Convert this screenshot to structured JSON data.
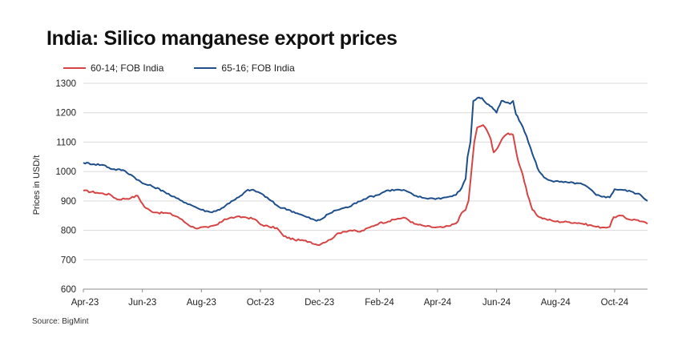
{
  "page": {
    "title": "India: Silico manganese export prices",
    "source": "Source: BigMint"
  },
  "chart_data": {
    "type": "line",
    "title": "India: Silico manganese export prices",
    "xlabel": "",
    "ylabel": "Prices in USD/t",
    "ylim": [
      600,
      1300
    ],
    "yticks": [
      600,
      700,
      800,
      900,
      1000,
      1100,
      1200,
      1300
    ],
    "xticks": [
      "Apr-23",
      "Jun-23",
      "Aug-23",
      "Oct-23",
      "Dec-23",
      "Feb-24",
      "Apr-24",
      "Jun-24",
      "Aug-24",
      "Oct-24"
    ],
    "x_range": [
      "2023-04-01",
      "2024-11-04"
    ],
    "grid": "horizontal",
    "legend_position": "top-left",
    "series": [
      {
        "name": "60-14; FOB India",
        "color": "#d64545",
        "points": [
          [
            "2023-04-01",
            935
          ],
          [
            "2023-04-15",
            928
          ],
          [
            "2023-04-29",
            921
          ],
          [
            "2023-05-06",
            905
          ],
          [
            "2023-05-20",
            910
          ],
          [
            "2023-05-27",
            918
          ],
          [
            "2023-06-03",
            880
          ],
          [
            "2023-06-10",
            865
          ],
          [
            "2023-06-17",
            860
          ],
          [
            "2023-06-28",
            858
          ],
          [
            "2023-07-08",
            845
          ],
          [
            "2023-07-18",
            820
          ],
          [
            "2023-07-25",
            808
          ],
          [
            "2023-08-08",
            810
          ],
          [
            "2023-08-18",
            820
          ],
          [
            "2023-08-25",
            838
          ],
          [
            "2023-09-05",
            845
          ],
          [
            "2023-09-15",
            845
          ],
          [
            "2023-09-25",
            838
          ],
          [
            "2023-10-01",
            820
          ],
          [
            "2023-10-10",
            812
          ],
          [
            "2023-10-18",
            808
          ],
          [
            "2023-10-25",
            780
          ],
          [
            "2023-11-05",
            768
          ],
          [
            "2023-11-15",
            765
          ],
          [
            "2023-11-22",
            760
          ],
          [
            "2023-11-29",
            750
          ],
          [
            "2023-12-05",
            758
          ],
          [
            "2023-12-12",
            768
          ],
          [
            "2023-12-18",
            785
          ],
          [
            "2023-12-25",
            795
          ],
          [
            "2024-01-02",
            800
          ],
          [
            "2024-01-12",
            795
          ],
          [
            "2024-01-22",
            810
          ],
          [
            "2024-02-01",
            825
          ],
          [
            "2024-02-10",
            830
          ],
          [
            "2024-02-20",
            840
          ],
          [
            "2024-02-28",
            842
          ],
          [
            "2024-03-08",
            822
          ],
          [
            "2024-03-18",
            815
          ],
          [
            "2024-03-28",
            810
          ],
          [
            "2024-04-06",
            810
          ],
          [
            "2024-04-14",
            815
          ],
          [
            "2024-04-22",
            830
          ],
          [
            "2024-04-26",
            860
          ],
          [
            "2024-04-30",
            870
          ],
          [
            "2024-05-03",
            900
          ],
          [
            "2024-05-06",
            1000
          ],
          [
            "2024-05-09",
            1100
          ],
          [
            "2024-05-12",
            1150
          ],
          [
            "2024-05-18",
            1158
          ],
          [
            "2024-05-22",
            1140
          ],
          [
            "2024-05-26",
            1110
          ],
          [
            "2024-05-29",
            1065
          ],
          [
            "2024-06-02",
            1080
          ],
          [
            "2024-06-05",
            1100
          ],
          [
            "2024-06-09",
            1120
          ],
          [
            "2024-06-13",
            1130
          ],
          [
            "2024-06-18",
            1125
          ],
          [
            "2024-06-20",
            1090
          ],
          [
            "2024-06-23",
            1040
          ],
          [
            "2024-06-28",
            990
          ],
          [
            "2024-07-03",
            920
          ],
          [
            "2024-07-08",
            870
          ],
          [
            "2024-07-15",
            845
          ],
          [
            "2024-07-22",
            838
          ],
          [
            "2024-08-01",
            830
          ],
          [
            "2024-08-15",
            828
          ],
          [
            "2024-08-25",
            825
          ],
          [
            "2024-09-05",
            818
          ],
          [
            "2024-09-12",
            812
          ],
          [
            "2024-09-20",
            810
          ],
          [
            "2024-09-26",
            812
          ],
          [
            "2024-09-30",
            845
          ],
          [
            "2024-10-08",
            850
          ],
          [
            "2024-10-15",
            838
          ],
          [
            "2024-10-25",
            835
          ],
          [
            "2024-11-04",
            822
          ]
        ]
      },
      {
        "name": "65-16; FOB India",
        "color": "#1f4f8a",
        "points": [
          [
            "2023-04-01",
            1030
          ],
          [
            "2023-04-12",
            1025
          ],
          [
            "2023-04-22",
            1022
          ],
          [
            "2023-05-01",
            1008
          ],
          [
            "2023-05-12",
            1005
          ],
          [
            "2023-05-22",
            985
          ],
          [
            "2023-06-01",
            960
          ],
          [
            "2023-06-11",
            950
          ],
          [
            "2023-06-22",
            935
          ],
          [
            "2023-07-02",
            915
          ],
          [
            "2023-07-12",
            900
          ],
          [
            "2023-07-22",
            885
          ],
          [
            "2023-08-01",
            870
          ],
          [
            "2023-08-10",
            862
          ],
          [
            "2023-08-20",
            870
          ],
          [
            "2023-08-28",
            890
          ],
          [
            "2023-09-05",
            905
          ],
          [
            "2023-09-12",
            920
          ],
          [
            "2023-09-18",
            938
          ],
          [
            "2023-09-25",
            935
          ],
          [
            "2023-10-02",
            925
          ],
          [
            "2023-10-10",
            905
          ],
          [
            "2023-10-20",
            880
          ],
          [
            "2023-10-30",
            870
          ],
          [
            "2023-11-08",
            858
          ],
          [
            "2023-11-18",
            845
          ],
          [
            "2023-11-28",
            832
          ],
          [
            "2023-12-03",
            838
          ],
          [
            "2023-12-10",
            855
          ],
          [
            "2023-12-18",
            868
          ],
          [
            "2023-12-25",
            875
          ],
          [
            "2024-01-01",
            880
          ],
          [
            "2024-01-10",
            898
          ],
          [
            "2024-01-20",
            912
          ],
          [
            "2024-01-30",
            920
          ],
          [
            "2024-02-08",
            935
          ],
          [
            "2024-02-18",
            938
          ],
          [
            "2024-02-28",
            935
          ],
          [
            "2024-03-08",
            918
          ],
          [
            "2024-03-18",
            910
          ],
          [
            "2024-03-28",
            908
          ],
          [
            "2024-04-06",
            910
          ],
          [
            "2024-04-14",
            915
          ],
          [
            "2024-04-20",
            920
          ],
          [
            "2024-04-26",
            945
          ],
          [
            "2024-04-30",
            975
          ],
          [
            "2024-05-02",
            1050
          ],
          [
            "2024-05-05",
            1100
          ],
          [
            "2024-05-08",
            1240
          ],
          [
            "2024-05-12",
            1250
          ],
          [
            "2024-05-17",
            1250
          ],
          [
            "2024-05-22",
            1230
          ],
          [
            "2024-05-27",
            1220
          ],
          [
            "2024-06-01",
            1200
          ],
          [
            "2024-06-06",
            1240
          ],
          [
            "2024-06-11",
            1235
          ],
          [
            "2024-06-15",
            1230
          ],
          [
            "2024-06-18",
            1240
          ],
          [
            "2024-06-21",
            1195
          ],
          [
            "2024-06-26",
            1165
          ],
          [
            "2024-07-02",
            1120
          ],
          [
            "2024-07-08",
            1060
          ],
          [
            "2024-07-15",
            1000
          ],
          [
            "2024-07-20",
            980
          ],
          [
            "2024-07-28",
            968
          ],
          [
            "2024-08-05",
            965
          ],
          [
            "2024-08-15",
            962
          ],
          [
            "2024-08-25",
            960
          ],
          [
            "2024-09-02",
            950
          ],
          [
            "2024-09-12",
            920
          ],
          [
            "2024-09-20",
            915
          ],
          [
            "2024-09-26",
            912
          ],
          [
            "2024-10-01",
            940
          ],
          [
            "2024-10-08",
            938
          ],
          [
            "2024-10-18",
            932
          ],
          [
            "2024-10-28",
            920
          ],
          [
            "2024-11-04",
            900
          ]
        ]
      }
    ]
  }
}
